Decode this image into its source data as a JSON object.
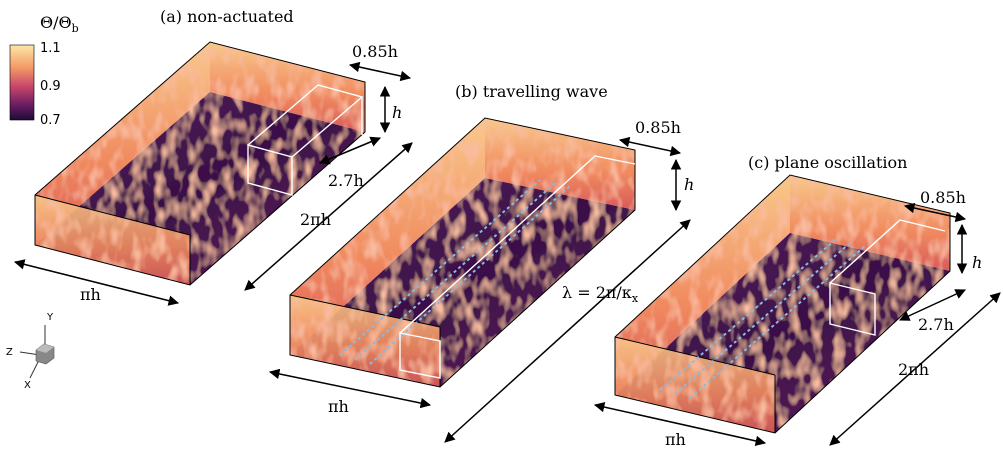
{
  "colorbar": {
    "title": {
      "main": "Θ/Θ",
      "sub": "b"
    },
    "ticks": [
      "1.1",
      "0.9",
      "0.7"
    ]
  },
  "panels": [
    {
      "label": "(a) non-actuated",
      "width_label": "0.85h",
      "height_label": "h",
      "length_label": "2.7h",
      "domain_length": "2πh",
      "domain_width": "πh"
    },
    {
      "label": "(b) travelling wave",
      "width_label": "0.85h",
      "height_label": "h",
      "wavelength": {
        "main": "λ = 2π/κ",
        "sub": "x"
      },
      "domain_width": "πh"
    },
    {
      "label": "(c) plane oscillation",
      "width_label": "0.85h",
      "height_label": "h",
      "length_label": "2.7h",
      "domain_length": "2πh",
      "domain_width": "πh"
    }
  ],
  "axes": {
    "y": "Y",
    "z": "Z",
    "x": "X"
  }
}
